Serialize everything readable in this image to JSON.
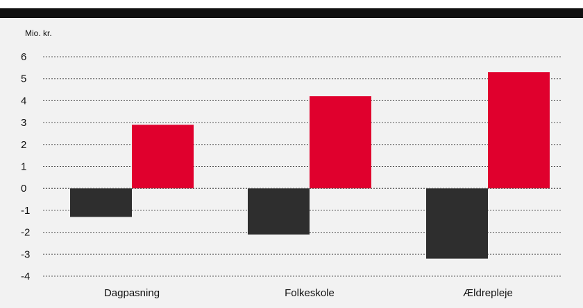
{
  "chart_data": {
    "type": "bar",
    "unit_label": "Mio. kr.",
    "categories": [
      "Dagpasning",
      "Folkeskole",
      "Ældrepleje"
    ],
    "series": [
      {
        "values": [
          -1.3,
          -2.1,
          -3.2
        ],
        "color": "#2e2e2e"
      },
      {
        "values": [
          2.9,
          4.2,
          5.3
        ],
        "color": "#e0002d"
      }
    ],
    "yticks": [
      6,
      5,
      4,
      3,
      2,
      1,
      0,
      -1,
      -2,
      -3,
      -4
    ],
    "ylim": [
      -4,
      6
    ],
    "grid": true,
    "gridline_style": "dotted"
  },
  "colors": {
    "top_bar": "#111111",
    "panel_background": "#f2f2f2"
  }
}
